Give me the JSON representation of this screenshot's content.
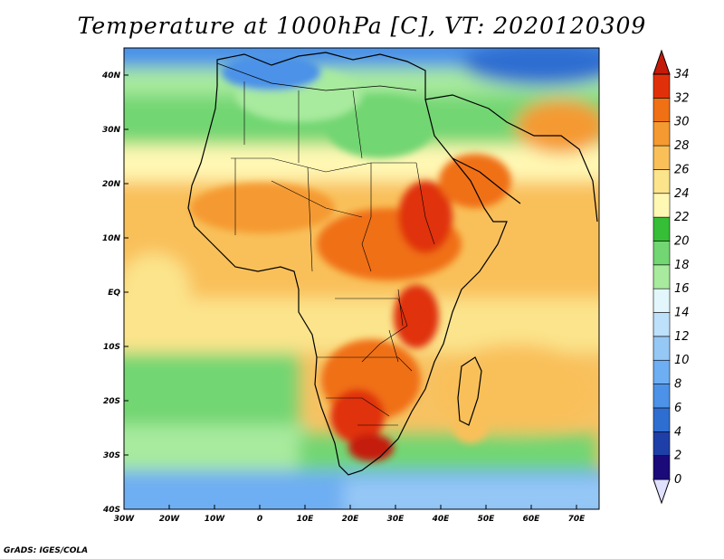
{
  "title": "Temperature at 1000hPa [C], VT: 2020120309",
  "credit": "GrADS: IGES/COLA",
  "map": {
    "lon_range": [
      -30,
      75
    ],
    "lat_range": [
      -40,
      45
    ],
    "lon_ticks": [
      "30W",
      "20W",
      "10W",
      "0",
      "10E",
      "20E",
      "30E",
      "40E",
      "50E",
      "60E",
      "70E"
    ],
    "lat_ticks": [
      "40S",
      "30S",
      "20S",
      "10S",
      "EQ",
      "10N",
      "20N",
      "30N",
      "40N"
    ]
  },
  "colorbar": {
    "labels": [
      "0",
      "2",
      "4",
      "6",
      "8",
      "10",
      "12",
      "14",
      "16",
      "18",
      "20",
      "22",
      "24",
      "26",
      "28",
      "30",
      "32",
      "34"
    ],
    "colors": [
      "#e0e0ff",
      "#1a0a7a",
      "#1f3fa8",
      "#2f6ed1",
      "#4b92e8",
      "#6eaef2",
      "#96c8f6",
      "#bde0fb",
      "#e2f6fb",
      "#a8ea9e",
      "#72d672",
      "#36be36",
      "#fff8b4",
      "#fbe48c",
      "#f9c05a",
      "#f59a31",
      "#f07014",
      "#e0300a",
      "#c41a08"
    ]
  }
}
